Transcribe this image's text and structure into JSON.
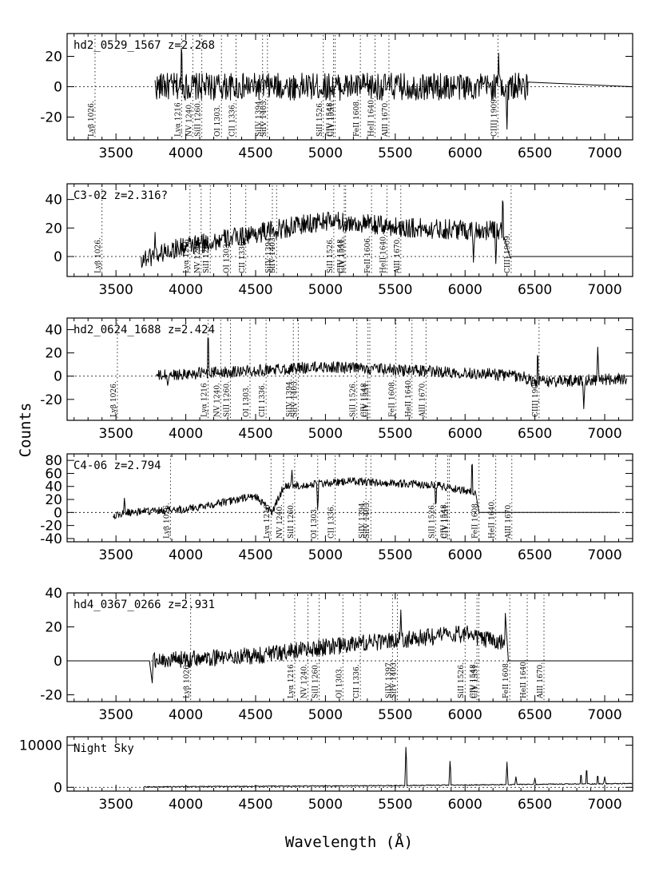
{
  "chart_data": [
    {
      "type": "line",
      "label": "hd2_0529_1567  z=2.268",
      "x_range": [
        3150,
        7200
      ],
      "ylim": [
        -35,
        35
      ],
      "y_ticks": [
        -20,
        0,
        20
      ],
      "x_ticks": [
        3500,
        4000,
        4500,
        5000,
        5500,
        6000,
        6500,
        7000
      ],
      "lines": [
        {
          "label": "Lyβ 1026.",
          "x": 3350
        },
        {
          "label": "Lyα 1216",
          "x": 3970
        },
        {
          "label": "NV 1240.",
          "x": 4050
        },
        {
          "label": "SiII 1260.",
          "x": 4115
        },
        {
          "label": "OI 1303.",
          "x": 4255
        },
        {
          "label": "CII 1336.",
          "x": 4360
        },
        {
          "label": "SiIV 1394.",
          "x": 4550
        },
        {
          "label": "SiIV 1403.",
          "x": 4585
        },
        {
          "label": "SiII 1526.",
          "x": 4985
        },
        {
          "label": "CIV 1548.",
          "x": 5058
        },
        {
          "label": "CIV 1551.",
          "x": 5070
        },
        {
          "label": "FeII 1608.",
          "x": 5250
        },
        {
          "label": "HeII 1640.",
          "x": 5355
        },
        {
          "label": "AlII 1670.",
          "x": 5455
        },
        {
          "label": "CIII] 1909.",
          "x": 6235
        }
      ],
      "spectrum": {
        "start": 3780,
        "end": 6450,
        "amplitude": 9,
        "trend": [
          [
            3780,
            0
          ],
          [
            6450,
            0
          ]
        ],
        "tail": [
          [
            6450,
            3
          ],
          [
            7200,
            0
          ]
        ],
        "peaks": [
          {
            "x": 3840,
            "y": 8
          },
          {
            "x": 3970,
            "y": 32
          },
          {
            "x": 6240,
            "y": 22
          },
          {
            "x": 6300,
            "y": -28
          }
        ]
      }
    },
    {
      "type": "line",
      "label": "C3-02  z=2.316?",
      "x_range": [
        3150,
        7200
      ],
      "ylim": [
        -14,
        51
      ],
      "y_ticks": [
        0,
        20,
        40
      ],
      "x_ticks": [
        3500,
        4000,
        4500,
        5000,
        5500,
        6000,
        6500,
        7000
      ],
      "lines": [
        {
          "label": "Lyβ 1026.",
          "x": 3400
        },
        {
          "label": "Lyα 1216",
          "x": 4030
        },
        {
          "label": "NV 1240.",
          "x": 4110
        },
        {
          "label": "SiII 1260.",
          "x": 4175
        },
        {
          "label": "OI 1303.",
          "x": 4320
        },
        {
          "label": "CII 1336.",
          "x": 4430
        },
        {
          "label": "SiIV 1394.",
          "x": 4620
        },
        {
          "label": "SiIV 1403.",
          "x": 4650
        },
        {
          "label": "SiII 1526.",
          "x": 5060
        },
        {
          "label": "CIV 1548.",
          "x": 5135
        },
        {
          "label": "CIV 1551.",
          "x": 5145
        },
        {
          "label": "FeII 1606.",
          "x": 5330
        },
        {
          "label": "HeII 1640.",
          "x": 5440
        },
        {
          "label": "AlII 1670.",
          "x": 5540
        },
        {
          "label": "CIII] 1909.",
          "x": 6330
        }
      ],
      "spectrum": {
        "start": 3680,
        "end": 6280,
        "amplitude": 7,
        "trend": [
          [
            3680,
            -2
          ],
          [
            3900,
            5
          ],
          [
            4600,
            18
          ],
          [
            5000,
            25
          ],
          [
            5600,
            20
          ],
          [
            6280,
            18
          ]
        ],
        "tail": [
          [
            6320,
            0
          ],
          [
            7200,
            0
          ]
        ],
        "peaks": [
          {
            "x": 3780,
            "y": 17
          },
          {
            "x": 6060,
            "y": -4
          },
          {
            "x": 6270,
            "y": 46
          },
          {
            "x": 6220,
            "y": -5
          }
        ]
      }
    },
    {
      "type": "line",
      "label": "hd2_0624_1688  z=2.424",
      "x_range": [
        3150,
        7200
      ],
      "ylim": [
        -38,
        50
      ],
      "y_ticks": [
        -20,
        0,
        20,
        40
      ],
      "x_ticks": [
        3500,
        4000,
        4500,
        5000,
        5500,
        6000,
        6500,
        7000
      ],
      "lines": [
        {
          "label": "Lyβ 1026.",
          "x": 3510
        },
        {
          "label": "Lyα 1216",
          "x": 4160
        },
        {
          "label": "NV 1240.",
          "x": 4250
        },
        {
          "label": "SiII 1260.",
          "x": 4320
        },
        {
          "label": "OI 1303.",
          "x": 4460
        },
        {
          "label": "CII 1336.",
          "x": 4575
        },
        {
          "label": "SiIV 1394.",
          "x": 4770
        },
        {
          "label": "SiIV 1403.",
          "x": 4805
        },
        {
          "label": "SiII 1526.",
          "x": 5225
        },
        {
          "label": "CIV 1548.",
          "x": 5305
        },
        {
          "label": "CIV 1551.",
          "x": 5318
        },
        {
          "label": "FeII 1608.",
          "x": 5505
        },
        {
          "label": "HeII 1640.",
          "x": 5620
        },
        {
          "label": "AlII 1670.",
          "x": 5720
        },
        {
          "label": "CIII] 1909.",
          "x": 6530
        }
      ],
      "spectrum": {
        "start": 3790,
        "end": 7160,
        "amplitude": 5,
        "trend": [
          [
            3790,
            0
          ],
          [
            4000,
            2
          ],
          [
            5000,
            8
          ],
          [
            6000,
            3
          ],
          [
            6400,
            0
          ],
          [
            6500,
            -5
          ],
          [
            7160,
            -2
          ]
        ],
        "tail": [],
        "peaks": [
          {
            "x": 3870,
            "y": -8
          },
          {
            "x": 4160,
            "y": 44
          },
          {
            "x": 6520,
            "y": 24
          },
          {
            "x": 6950,
            "y": 25
          },
          {
            "x": 6850,
            "y": -28
          }
        ]
      }
    },
    {
      "type": "line",
      "label": "C4-06  z=2.794",
      "x_range": [
        3150,
        7200
      ],
      "ylim": [
        -45,
        90
      ],
      "y_ticks": [
        -40,
        -20,
        0,
        20,
        40,
        60,
        80
      ],
      "x_ticks": [
        3500,
        4000,
        4500,
        5000,
        5500,
        6000,
        6500,
        7000
      ],
      "lines": [
        {
          "label": "Lyβ 1026.",
          "x": 3890
        },
        {
          "label": "Lyα 1216",
          "x": 4610
        },
        {
          "label": "NV 1240.",
          "x": 4700
        },
        {
          "label": "SiII 1260.",
          "x": 4780
        },
        {
          "label": "OI 1303.",
          "x": 4945
        },
        {
          "label": "CII 1336.",
          "x": 5070
        },
        {
          "label": "SiIV 1394.",
          "x": 5290
        },
        {
          "label": "SiIV 1403.",
          "x": 5325
        },
        {
          "label": "SiII 1526.",
          "x": 5790
        },
        {
          "label": "CIV 1548.",
          "x": 5875
        },
        {
          "label": "CIV 1551.",
          "x": 5888
        },
        {
          "label": "FeII 1608.",
          "x": 6100
        },
        {
          "label": "HeII 1640.",
          "x": 6220
        },
        {
          "label": "AlII 1670.",
          "x": 6335
        }
      ],
      "spectrum": {
        "start": 3480,
        "end": 6080,
        "amplitude": 6,
        "trend": [
          [
            3480,
            -5
          ],
          [
            3600,
            0
          ],
          [
            4000,
            5
          ],
          [
            4500,
            25
          ],
          [
            4620,
            0
          ],
          [
            4700,
            40
          ],
          [
            5200,
            48
          ],
          [
            5800,
            42
          ],
          [
            6080,
            30
          ]
        ],
        "tail": [
          [
            6100,
            0
          ],
          [
            7100,
            0
          ]
        ],
        "peaks": [
          {
            "x": 3560,
            "y": 22
          },
          {
            "x": 4760,
            "y": 65
          },
          {
            "x": 4945,
            "y": 0
          },
          {
            "x": 6050,
            "y": 88
          },
          {
            "x": 5790,
            "y": 5
          }
        ]
      }
    },
    {
      "type": "line",
      "label": "hd4_0367_0266  z=2.931",
      "x_range": [
        3150,
        7200
      ],
      "ylim": [
        -24,
        40
      ],
      "y_ticks": [
        -20,
        0,
        20,
        40
      ],
      "x_ticks": [
        3500,
        4000,
        4500,
        5000,
        5500,
        6000,
        6500,
        7000
      ],
      "lines": [
        {
          "label": "Lyβ 1026.",
          "x": 4035
        },
        {
          "label": "Lyα 1216",
          "x": 4780
        },
        {
          "label": "NV 1240.",
          "x": 4875
        },
        {
          "label": "SiII 1260.",
          "x": 4955
        },
        {
          "label": "OI 1303.",
          "x": 5125
        },
        {
          "label": "CII 1336.",
          "x": 5250
        },
        {
          "label": "SiIV 1397.",
          "x": 5480
        },
        {
          "label": "SiIV 1403.",
          "x": 5515
        },
        {
          "label": "SiII 1526.",
          "x": 6000
        },
        {
          "label": "CIV 1548.",
          "x": 6085
        },
        {
          "label": "CIV 1551.",
          "x": 6098
        },
        {
          "label": "FeII 1608.",
          "x": 6320
        },
        {
          "label": "HeII 1640.",
          "x": 6445
        },
        {
          "label": "AlII 1670.",
          "x": 6565
        }
      ],
      "spectrum": {
        "start": 3760,
        "end": 6290,
        "amplitude": 5,
        "trend": [
          [
            3760,
            0
          ],
          [
            4500,
            3
          ],
          [
            5000,
            8
          ],
          [
            5600,
            13
          ],
          [
            6000,
            16
          ],
          [
            6290,
            10
          ]
        ],
        "tail": [
          [
            6310,
            0
          ],
          [
            7200,
            0
          ]
        ],
        "head": [
          [
            3150,
            0
          ],
          [
            3740,
            0
          ]
        ],
        "peaks": [
          {
            "x": 3760,
            "y": -13
          },
          {
            "x": 6290,
            "y": 35
          },
          {
            "x": 5540,
            "y": 30
          }
        ]
      }
    },
    {
      "type": "line",
      "label": "Night Sky",
      "x_range": [
        3150,
        7200
      ],
      "ylim": [
        -900,
        12000
      ],
      "y_ticks": [
        0,
        10000
      ],
      "x_ticks": [
        3500,
        4000,
        4500,
        5000,
        5500,
        6000,
        6500,
        7000
      ],
      "lines": [],
      "spectrum": {
        "start": 3700,
        "end": 7200,
        "amplitude": 120,
        "trend": [
          [
            3700,
            100
          ],
          [
            5500,
            400
          ],
          [
            7200,
            900
          ]
        ],
        "tail": [],
        "peaks": [
          {
            "x": 5577,
            "y": 10800
          },
          {
            "x": 5893,
            "y": 7000
          },
          {
            "x": 6300,
            "y": 6000
          },
          {
            "x": 6364,
            "y": 2500
          },
          {
            "x": 6500,
            "y": 2200
          },
          {
            "x": 6830,
            "y": 3500
          },
          {
            "x": 6870,
            "y": 5000
          },
          {
            "x": 6950,
            "y": 3200
          },
          {
            "x": 7000,
            "y": 2500
          }
        ]
      }
    }
  ],
  "axis": {
    "ylabel": "Counts",
    "xlabel": "Wavelength (Å)"
  }
}
